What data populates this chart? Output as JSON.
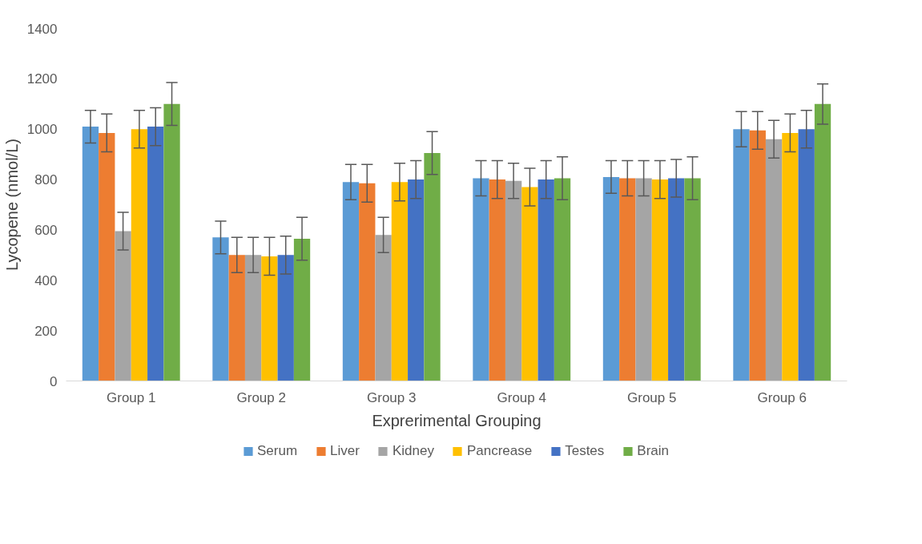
{
  "chart_data": {
    "type": "bar",
    "xlabel": "Exprerimental Grouping",
    "ylabel": "Lycopene (nmol/L)",
    "categories": [
      "Group 1",
      "Group 2",
      "Group 3",
      "Group 4",
      "Group 5",
      "Group 6"
    ],
    "ylim": [
      0,
      1400
    ],
    "yticks": [
      0,
      200,
      400,
      600,
      800,
      1000,
      1200,
      1400
    ],
    "grid": false,
    "legend": "bottom",
    "series": [
      {
        "name": "Serum",
        "color": "#5b9bd5",
        "values": [
          1010,
          570,
          790,
          805,
          810,
          1000
        ],
        "errors": [
          65,
          65,
          70,
          70,
          65,
          70
        ]
      },
      {
        "name": "Liver",
        "color": "#ed7d31",
        "values": [
          985,
          500,
          785,
          800,
          805,
          995
        ],
        "errors": [
          75,
          70,
          75,
          75,
          70,
          75
        ]
      },
      {
        "name": "Kidney",
        "color": "#a5a5a5",
        "values": [
          595,
          500,
          580,
          795,
          805,
          960
        ],
        "errors": [
          75,
          70,
          70,
          70,
          70,
          75
        ]
      },
      {
        "name": "Pancrease",
        "color": "#ffc000",
        "values": [
          1000,
          495,
          790,
          770,
          800,
          985
        ],
        "errors": [
          75,
          75,
          75,
          75,
          75,
          75
        ]
      },
      {
        "name": "Testes",
        "color": "#4472c4",
        "values": [
          1010,
          500,
          800,
          800,
          805,
          1000
        ],
        "errors": [
          75,
          75,
          75,
          75,
          75,
          75
        ]
      },
      {
        "name": "Brain",
        "color": "#70ad47",
        "values": [
          1100,
          565,
          905,
          805,
          805,
          1100
        ],
        "errors": [
          85,
          85,
          85,
          85,
          85,
          80
        ]
      }
    ]
  }
}
